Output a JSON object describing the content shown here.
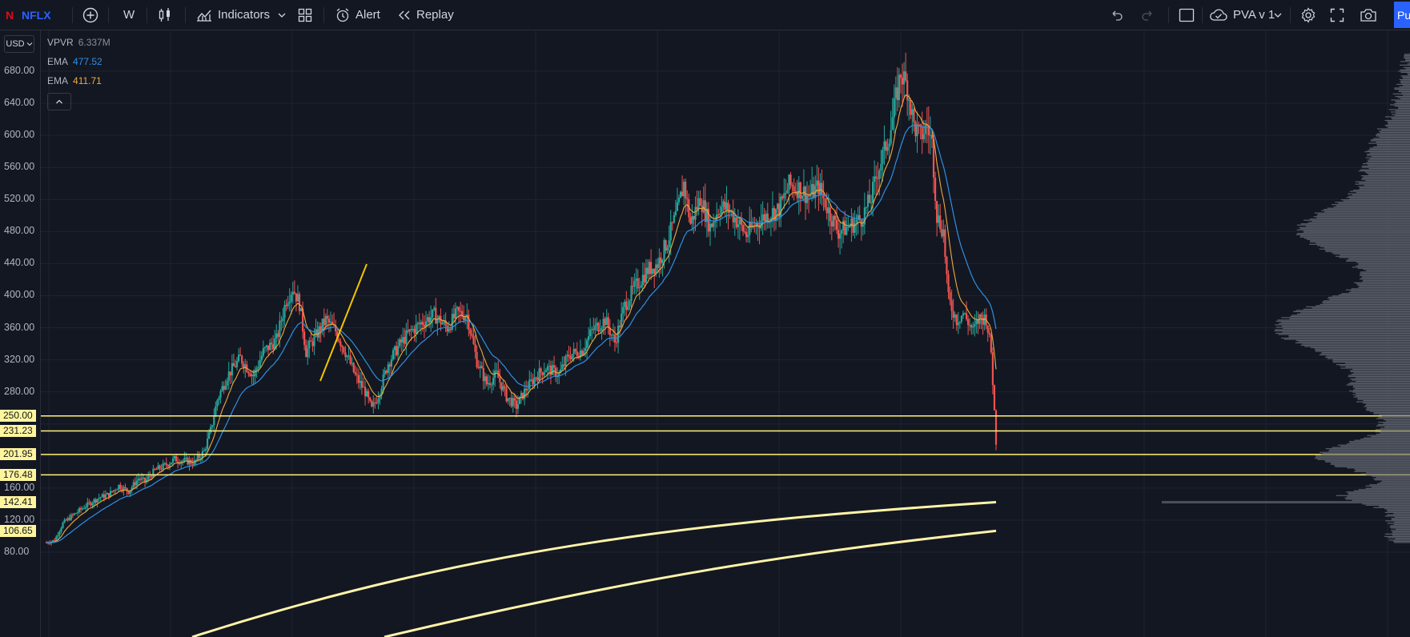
{
  "toolbar": {
    "symbol": "NFLX",
    "brand_letter": "N",
    "interval": "W",
    "indicators_label": "Indicators",
    "alert_label": "Alert",
    "replay_label": "Replay",
    "layout_name": "PVA v 1",
    "publish_label": "Pu"
  },
  "left_scale": {
    "currency": "USD",
    "ticks": [
      "680.00",
      "640.00",
      "600.00",
      "560.00",
      "520.00",
      "480.00",
      "440.00",
      "400.00",
      "360.00",
      "320.00",
      "280.00",
      "160.00",
      "120.00",
      "80.00"
    ],
    "highlight_labels": [
      "250.00",
      "231.23",
      "201.95",
      "176.48",
      "142.41",
      "106.65"
    ]
  },
  "legend": {
    "vpvr_label": "VPVR",
    "vpvr_value": "6.337M",
    "ema1_label": "EMA",
    "ema1_value": "477.52",
    "ema2_label": "EMA",
    "ema2_value": "411.71"
  },
  "colors": {
    "background": "#131722",
    "grid": "#1f2330",
    "up": "#26a69a",
    "down": "#ef5350",
    "ema_fast": "#f0a93c",
    "ema_slow": "#2f8fe0",
    "level_line": "#fff27a",
    "volume_profile": "#6b6f79",
    "accent": "#2962ff"
  },
  "chart_data": {
    "type": "candlestick",
    "symbol": "NFLX",
    "interval": "W",
    "ylim": [
      60,
      710
    ],
    "horizontal_levels": [
      250.0,
      231.23,
      201.95,
      176.48
    ],
    "moving_average_values": [
      142.41,
      106.65
    ],
    "anchors": [
      [
        0,
        92
      ],
      [
        5,
        95
      ],
      [
        10,
        116
      ],
      [
        16,
        126
      ],
      [
        24,
        138
      ],
      [
        32,
        148
      ],
      [
        38,
        152
      ],
      [
        44,
        163
      ],
      [
        50,
        156
      ],
      [
        56,
        172
      ],
      [
        60,
        168
      ],
      [
        66,
        182
      ],
      [
        72,
        188
      ],
      [
        78,
        196
      ],
      [
        84,
        194
      ],
      [
        90,
        192
      ],
      [
        96,
        206
      ],
      [
        100,
        232
      ],
      [
        104,
        270
      ],
      [
        110,
        300
      ],
      [
        118,
        322
      ],
      [
        126,
        300
      ],
      [
        132,
        330
      ],
      [
        140,
        345
      ],
      [
        146,
        395
      ],
      [
        150,
        410
      ],
      [
        154,
        390
      ],
      [
        158,
        330
      ],
      [
        164,
        350
      ],
      [
        170,
        370
      ],
      [
        176,
        356
      ],
      [
        182,
        330
      ],
      [
        188,
        300
      ],
      [
        194,
        280
      ],
      [
        198,
        258
      ],
      [
        202,
        276
      ],
      [
        208,
        316
      ],
      [
        214,
        336
      ],
      [
        220,
        352
      ],
      [
        228,
        366
      ],
      [
        236,
        376
      ],
      [
        244,
        360
      ],
      [
        250,
        378
      ],
      [
        256,
        376
      ],
      [
        262,
        318
      ],
      [
        268,
        290
      ],
      [
        274,
        302
      ],
      [
        280,
        274
      ],
      [
        286,
        262
      ],
      [
        292,
        284
      ],
      [
        298,
        300
      ],
      [
        304,
        310
      ],
      [
        312,
        302
      ],
      [
        318,
        326
      ],
      [
        326,
        332
      ],
      [
        332,
        356
      ],
      [
        340,
        370
      ],
      [
        346,
        342
      ],
      [
        352,
        388
      ],
      [
        358,
        410
      ],
      [
        366,
        432
      ],
      [
        372,
        440
      ],
      [
        378,
        468
      ],
      [
        384,
        505
      ],
      [
        388,
        540
      ],
      [
        392,
        490
      ],
      [
        398,
        522
      ],
      [
        404,
        486
      ],
      [
        410,
        512
      ],
      [
        416,
        506
      ],
      [
        422,
        488
      ],
      [
        426,
        476
      ],
      [
        432,
        490
      ],
      [
        438,
        500
      ],
      [
        446,
        508
      ],
      [
        452,
        538
      ],
      [
        458,
        534
      ],
      [
        464,
        524
      ],
      [
        470,
        536
      ],
      [
        476,
        506
      ],
      [
        482,
        480
      ],
      [
        488,
        486
      ],
      [
        496,
        496
      ],
      [
        502,
        522
      ],
      [
        506,
        556
      ],
      [
        510,
        580
      ],
      [
        514,
        610
      ],
      [
        518,
        656
      ],
      [
        520,
        678
      ],
      [
        524,
        660
      ],
      [
        528,
        612
      ],
      [
        532,
        598
      ],
      [
        536,
        612
      ],
      [
        539,
        590
      ],
      [
        542,
        500
      ],
      [
        546,
        480
      ],
      [
        549,
        395
      ],
      [
        554,
        370
      ],
      [
        558,
        378
      ],
      [
        564,
        356
      ],
      [
        568,
        372
      ],
      [
        572,
        372
      ],
      [
        575,
        330
      ],
      [
        578,
        218
      ]
    ]
  }
}
